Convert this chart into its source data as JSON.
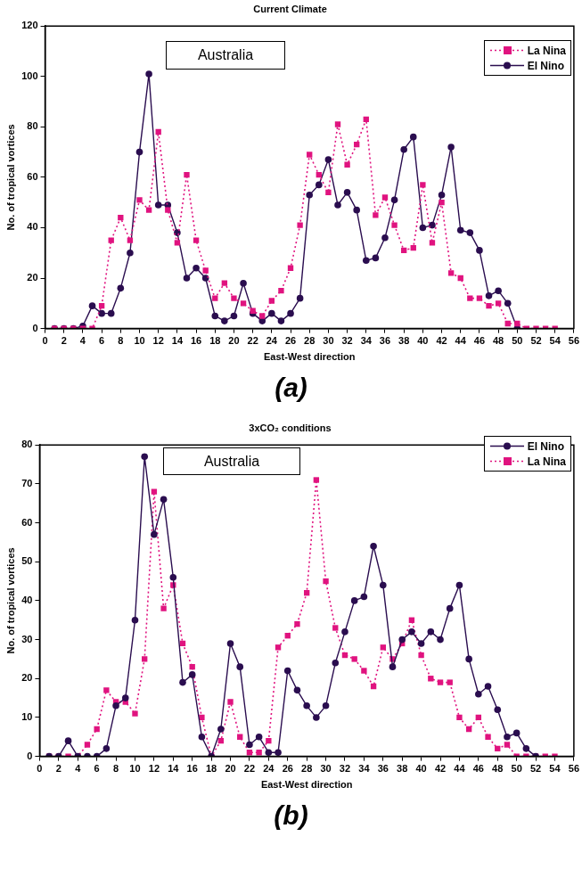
{
  "chart_data": [
    {
      "type": "line",
      "title": "Current Climate",
      "xlabel": "East-West direction",
      "ylabel": "No. of tropical vortices",
      "x": [
        1,
        2,
        3,
        4,
        5,
        6,
        7,
        8,
        9,
        10,
        11,
        12,
        13,
        14,
        15,
        16,
        17,
        18,
        19,
        20,
        21,
        22,
        23,
        24,
        25,
        26,
        27,
        28,
        29,
        30,
        31,
        32,
        33,
        34,
        35,
        36,
        37,
        38,
        39,
        40,
        41,
        42,
        43,
        44,
        45,
        46,
        47,
        48,
        49,
        50,
        51,
        52,
        53,
        54
      ],
      "series": [
        {
          "name": "La Nina",
          "color": "#e0137f",
          "marker": "square",
          "line_style": "dotted",
          "values": [
            0,
            0,
            0,
            0,
            0,
            9,
            35,
            44,
            35,
            51,
            47,
            78,
            47,
            34,
            61,
            35,
            23,
            12,
            18,
            12,
            10,
            7,
            5,
            11,
            15,
            24,
            41,
            69,
            61,
            54,
            81,
            65,
            73,
            83,
            45,
            52,
            41,
            31,
            32,
            57,
            34,
            50,
            22,
            20,
            12,
            12,
            9,
            10,
            2,
            2,
            0,
            0,
            0,
            0
          ]
        },
        {
          "name": "El Nino",
          "color": "#2a0d4f",
          "marker": "circle",
          "line_style": "solid",
          "values": [
            0,
            0,
            0,
            1,
            9,
            6,
            6,
            16,
            30,
            70,
            101,
            49,
            49,
            38,
            20,
            24,
            20,
            5,
            3,
            5,
            18,
            6,
            3,
            6,
            3,
            6,
            12,
            53,
            57,
            67,
            49,
            54,
            47,
            27,
            28,
            36,
            51,
            71,
            76,
            40,
            41,
            53,
            72,
            39,
            38,
            31,
            13,
            15,
            10,
            0,
            null,
            null,
            null,
            null
          ]
        }
      ],
      "xlim": [
        0,
        56
      ],
      "xticks": [
        0,
        2,
        4,
        6,
        8,
        10,
        12,
        14,
        16,
        18,
        20,
        22,
        24,
        26,
        28,
        30,
        32,
        34,
        36,
        38,
        40,
        42,
        44,
        46,
        48,
        50,
        52,
        54,
        56
      ],
      "ylim": [
        0,
        120
      ],
      "yticks": [
        0,
        20,
        40,
        60,
        80,
        100,
        120
      ],
      "grid": false,
      "legend": "top right",
      "annotations": [
        "Australia",
        "(a)"
      ]
    },
    {
      "type": "line",
      "title": "3xCO₂ conditions",
      "xlabel": "East-West direction",
      "ylabel": "No. of tropical vortices",
      "x": [
        1,
        2,
        3,
        4,
        5,
        6,
        7,
        8,
        9,
        10,
        11,
        12,
        13,
        14,
        15,
        16,
        17,
        18,
        19,
        20,
        21,
        22,
        23,
        24,
        25,
        26,
        27,
        28,
        29,
        30,
        31,
        32,
        33,
        34,
        35,
        36,
        37,
        38,
        39,
        40,
        41,
        42,
        43,
        44,
        45,
        46,
        47,
        48,
        49,
        50,
        51,
        52,
        53,
        54
      ],
      "series": [
        {
          "name": "El Nino",
          "color": "#2a0d4f",
          "marker": "circle",
          "line_style": "solid",
          "values": [
            0,
            0,
            4,
            0,
            0,
            0,
            2,
            13,
            15,
            35,
            77,
            57,
            66,
            46,
            19,
            21,
            5,
            0,
            7,
            29,
            23,
            3,
            5,
            1,
            1,
            22,
            17,
            13,
            10,
            13,
            24,
            32,
            40,
            41,
            54,
            44,
            23,
            30,
            32,
            29,
            32,
            30,
            38,
            44,
            25,
            16,
            18,
            12,
            5,
            6,
            2,
            0,
            null,
            null
          ]
        },
        {
          "name": "La Nina",
          "color": "#e0137f",
          "marker": "square",
          "line_style": "dotted",
          "values": [
            0,
            0,
            0,
            0,
            3,
            7,
            17,
            14,
            14,
            11,
            25,
            68,
            38,
            44,
            29,
            23,
            10,
            0,
            4,
            14,
            5,
            1,
            1,
            4,
            28,
            31,
            34,
            42,
            71,
            45,
            33,
            26,
            25,
            22,
            18,
            28,
            25,
            29,
            35,
            26,
            20,
            19,
            19,
            10,
            7,
            10,
            5,
            2,
            3,
            0,
            0,
            0,
            0,
            0
          ]
        }
      ],
      "xlim": [
        0,
        56
      ],
      "xticks": [
        0,
        2,
        4,
        6,
        8,
        10,
        12,
        14,
        16,
        18,
        20,
        22,
        24,
        26,
        28,
        30,
        32,
        34,
        36,
        38,
        40,
        42,
        44,
        46,
        48,
        50,
        52,
        54,
        56
      ],
      "ylim": [
        0,
        80
      ],
      "yticks": [
        0,
        10,
        20,
        30,
        40,
        50,
        60,
        70,
        80
      ],
      "grid": false,
      "legend": "top right",
      "annotations": [
        "Australia",
        "(b)"
      ]
    }
  ]
}
